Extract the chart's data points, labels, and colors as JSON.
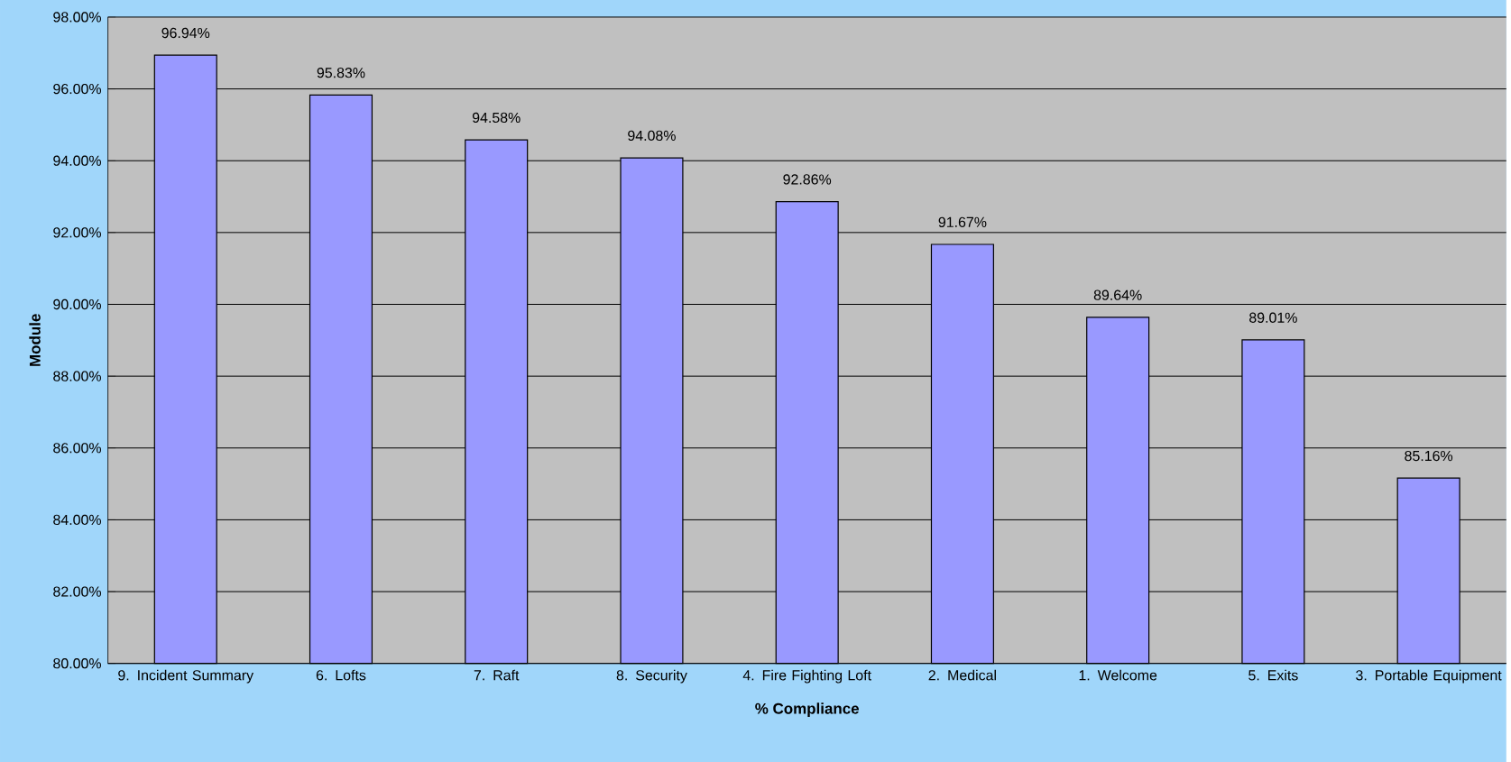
{
  "chart_data": {
    "type": "bar",
    "xlabel": "% Compliance",
    "ylabel": "Module",
    "categories": [
      "9. Incident Summary",
      "6. Lofts",
      "7. Raft",
      "8. Security",
      "4. Fire Fighting Loft",
      "2. Medical",
      "1. Welcome",
      "5. Exits",
      "3. Portable Equipment"
    ],
    "values": [
      96.94,
      95.83,
      94.58,
      94.08,
      92.86,
      91.67,
      89.64,
      89.01,
      85.16
    ],
    "value_labels": [
      "96.94%",
      "95.83%",
      "94.58%",
      "94.08%",
      "92.86%",
      "91.67%",
      "89.64%",
      "89.01%",
      "85.16%"
    ],
    "color": "#9999ff",
    "ylim": [
      80,
      98
    ],
    "yticks": [
      {
        "value": 80,
        "label": "80.00%"
      },
      {
        "value": 82,
        "label": "82.00%"
      },
      {
        "value": 84,
        "label": "84.00%"
      },
      {
        "value": 86,
        "label": "86.00%"
      },
      {
        "value": 88,
        "label": "88.00%"
      },
      {
        "value": 90,
        "label": "90.00%"
      },
      {
        "value": 92,
        "label": "92.00%"
      },
      {
        "value": 94,
        "label": "94.00%"
      },
      {
        "value": 96,
        "label": "96.00%"
      },
      {
        "value": 98,
        "label": "98.00%"
      }
    ],
    "grid": "y"
  }
}
